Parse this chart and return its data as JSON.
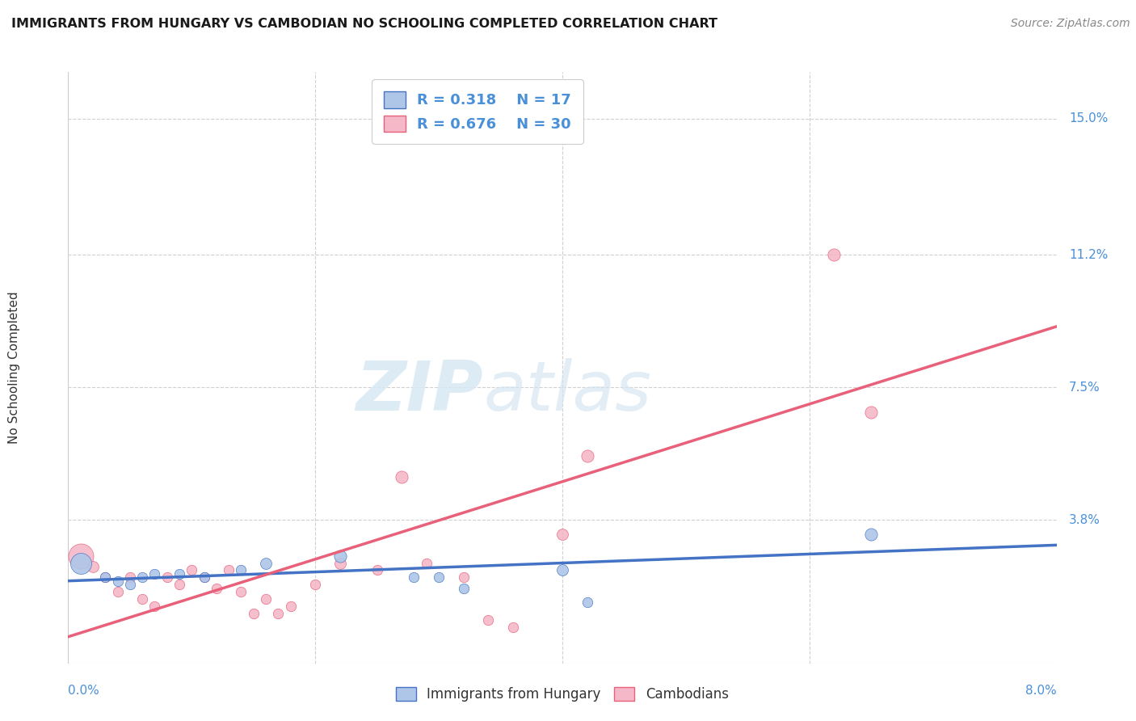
{
  "title": "IMMIGRANTS FROM HUNGARY VS CAMBODIAN NO SCHOOLING COMPLETED CORRELATION CHART",
  "source": "Source: ZipAtlas.com",
  "ylabel": "No Schooling Completed",
  "right_ytick_labels": [
    "15.0%",
    "11.2%",
    "7.5%",
    "3.8%"
  ],
  "right_ytick_values": [
    0.15,
    0.112,
    0.075,
    0.038
  ],
  "xlim": [
    0.0,
    0.08
  ],
  "ylim": [
    -0.002,
    0.163
  ],
  "blue_R": 0.318,
  "blue_N": 17,
  "pink_R": 0.676,
  "pink_N": 30,
  "blue_color": "#aec6e8",
  "pink_color": "#f5b8c8",
  "blue_line_color": "#4472c4",
  "pink_line_color": "#e8607a",
  "legend_bottom_blue": "Immigrants from Hungary",
  "legend_bottom_pink": "Cambodians",
  "blue_points": [
    [
      0.001,
      0.026,
      350
    ],
    [
      0.003,
      0.022,
      80
    ],
    [
      0.004,
      0.021,
      80
    ],
    [
      0.005,
      0.02,
      80
    ],
    [
      0.006,
      0.022,
      80
    ],
    [
      0.007,
      0.023,
      80
    ],
    [
      0.009,
      0.023,
      80
    ],
    [
      0.011,
      0.022,
      80
    ],
    [
      0.014,
      0.024,
      80
    ],
    [
      0.016,
      0.026,
      100
    ],
    [
      0.022,
      0.028,
      120
    ],
    [
      0.028,
      0.022,
      80
    ],
    [
      0.03,
      0.022,
      80
    ],
    [
      0.032,
      0.019,
      80
    ],
    [
      0.04,
      0.024,
      100
    ],
    [
      0.042,
      0.015,
      80
    ],
    [
      0.065,
      0.034,
      120
    ]
  ],
  "pink_points": [
    [
      0.001,
      0.028,
      500
    ],
    [
      0.002,
      0.025,
      100
    ],
    [
      0.003,
      0.022,
      80
    ],
    [
      0.004,
      0.018,
      80
    ],
    [
      0.005,
      0.022,
      80
    ],
    [
      0.006,
      0.016,
      80
    ],
    [
      0.007,
      0.014,
      80
    ],
    [
      0.008,
      0.022,
      80
    ],
    [
      0.009,
      0.02,
      80
    ],
    [
      0.01,
      0.024,
      80
    ],
    [
      0.011,
      0.022,
      80
    ],
    [
      0.012,
      0.019,
      80
    ],
    [
      0.013,
      0.024,
      80
    ],
    [
      0.014,
      0.018,
      80
    ],
    [
      0.015,
      0.012,
      80
    ],
    [
      0.016,
      0.016,
      80
    ],
    [
      0.017,
      0.012,
      80
    ],
    [
      0.018,
      0.014,
      80
    ],
    [
      0.02,
      0.02,
      80
    ],
    [
      0.022,
      0.026,
      100
    ],
    [
      0.025,
      0.024,
      80
    ],
    [
      0.027,
      0.05,
      120
    ],
    [
      0.029,
      0.026,
      80
    ],
    [
      0.032,
      0.022,
      80
    ],
    [
      0.034,
      0.01,
      80
    ],
    [
      0.036,
      0.008,
      80
    ],
    [
      0.04,
      0.034,
      100
    ],
    [
      0.042,
      0.056,
      120
    ],
    [
      0.062,
      0.112,
      120
    ],
    [
      0.065,
      0.068,
      120
    ]
  ],
  "blue_trend": [
    0.0,
    0.08,
    0.021,
    0.031
  ],
  "pink_trend": [
    -0.005,
    0.08,
    0.0,
    0.092
  ],
  "watermark_zip": "ZIP",
  "watermark_atlas": "atlas",
  "background_color": "#ffffff",
  "grid_color": "#d0d0d0",
  "title_fontsize": 11.5,
  "axis_label_color": "#4a90d9",
  "text_color": "#333333"
}
